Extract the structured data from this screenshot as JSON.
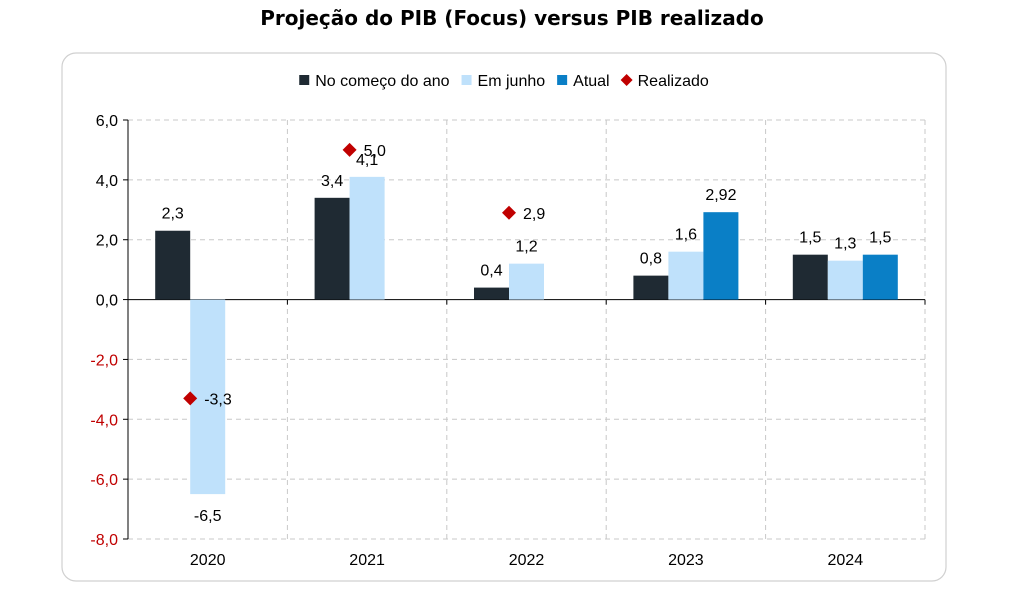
{
  "chart_data": {
    "type": "bar",
    "title": "Projeção do PIB (Focus) versus PIB realizado",
    "categories": [
      "2020",
      "2021",
      "2022",
      "2023",
      "2024"
    ],
    "series": [
      {
        "name": "No começo do ano",
        "color": "#1f2a33",
        "values": [
          2.3,
          3.4,
          0.4,
          0.8,
          1.5
        ],
        "labels": [
          "2,3",
          "3,4",
          "0,4",
          "0,8",
          "1,5"
        ]
      },
      {
        "name": "Em junho",
        "color": "#bfe1fb",
        "values": [
          -6.5,
          4.1,
          1.2,
          1.6,
          1.3
        ],
        "labels": [
          "-6,5",
          "4,1",
          "1,2",
          "1,6",
          "1,3"
        ]
      },
      {
        "name": "Atual",
        "color": "#0a7fc6",
        "values": [
          null,
          null,
          null,
          2.92,
          1.5
        ],
        "labels": [
          null,
          null,
          null,
          "2,92",
          "1,5"
        ]
      }
    ],
    "markers": {
      "name": "Realizado",
      "color": "#c00000",
      "values": [
        -3.3,
        5.0,
        2.9,
        null,
        null
      ],
      "labels": [
        "-3,3",
        "5,0",
        "2,9",
        null,
        null
      ]
    },
    "ylim": [
      -8,
      6
    ],
    "yticks": [
      6,
      4,
      2,
      0,
      -2,
      -4,
      -6,
      -8
    ],
    "ytick_labels": [
      "6,0",
      "4,0",
      "2,0",
      "0,0",
      "-2,0",
      "-4,0",
      "-6,0",
      "-8,0"
    ],
    "ytick_colors": [
      "#000000",
      "#000000",
      "#000000",
      "#000000",
      "#c00000",
      "#c00000",
      "#c00000",
      "#c00000"
    ],
    "grid": true,
    "legend_position": "top",
    "xlabel": "",
    "ylabel": ""
  }
}
